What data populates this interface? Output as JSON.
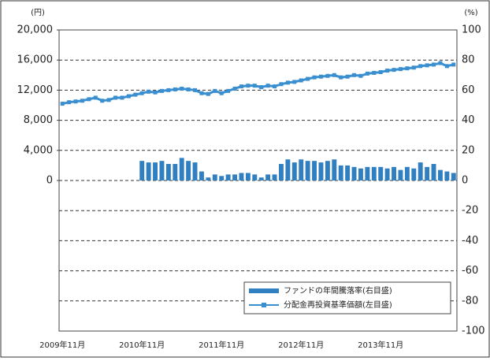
{
  "chart_data": {
    "type": "bar",
    "y_unit_label": "(円)",
    "y2_unit_label": "(%)",
    "categories": [
      "2009年11月",
      null,
      null,
      null,
      null,
      null,
      null,
      null,
      null,
      null,
      null,
      null,
      "2010年11月",
      null,
      null,
      null,
      null,
      null,
      null,
      null,
      null,
      null,
      null,
      null,
      "2011年11月",
      null,
      null,
      null,
      null,
      null,
      null,
      null,
      null,
      null,
      null,
      null,
      "2012年11月",
      null,
      null,
      null,
      null,
      null,
      null,
      null,
      null,
      null,
      null,
      null,
      "2013年11月",
      null,
      null,
      null,
      null,
      null,
      null,
      null,
      null,
      null,
      null,
      null
    ],
    "series": [
      {
        "name": "ファンドの年間騰落率(右目盛)",
        "type": "bar",
        "axis": "y2",
        "color": "#2f7fc1",
        "values": [
          null,
          null,
          null,
          null,
          null,
          null,
          null,
          null,
          null,
          null,
          null,
          null,
          13,
          12,
          12,
          13,
          11,
          11,
          15,
          13,
          12,
          6,
          2,
          4,
          3,
          4,
          4,
          5,
          5,
          4,
          2,
          4,
          4,
          11,
          14,
          12,
          14,
          13,
          13,
          12,
          13,
          14,
          10,
          10,
          9,
          8,
          9,
          9,
          9,
          8,
          9,
          7,
          9,
          8,
          12,
          9,
          11,
          7,
          6,
          5
        ]
      },
      {
        "name": "分配金再投資基準価額(左目盛)",
        "type": "line",
        "axis": "y",
        "color": "#3a8fd0",
        "values": [
          10200,
          10400,
          10500,
          10600,
          10800,
          11000,
          10600,
          10700,
          11000,
          11000,
          11200,
          11400,
          11600,
          11800,
          11700,
          11900,
          12000,
          12100,
          12200,
          12100,
          12000,
          11600,
          11500,
          11900,
          11600,
          11900,
          12200,
          12500,
          12600,
          12600,
          12400,
          12600,
          12500,
          12800,
          13000,
          13100,
          13300,
          13500,
          13700,
          13800,
          13900,
          14000,
          13700,
          13800,
          14000,
          13900,
          14200,
          14300,
          14400,
          14600,
          14700,
          14800,
          14900,
          15000,
          15200,
          15300,
          15400,
          15600,
          15200,
          15400
        ]
      }
    ],
    "ylim": [
      -20000,
      20000
    ],
    "yticks": [
      0,
      {
        "value": 4000,
        "label": "4,000"
      },
      {
        "value": 8000,
        "label": "8,000"
      },
      {
        "value": 12000,
        "label": "12,000"
      },
      {
        "value": 16000,
        "label": "16,000"
      },
      {
        "value": 20000,
        "label": "20,000"
      }
    ],
    "y2lim": [
      -100,
      100
    ],
    "y2ticks": [
      -100,
      -80,
      -60,
      -40,
      -20,
      0,
      20,
      40,
      60,
      80,
      100
    ],
    "grid": true,
    "legend": "lower right"
  }
}
